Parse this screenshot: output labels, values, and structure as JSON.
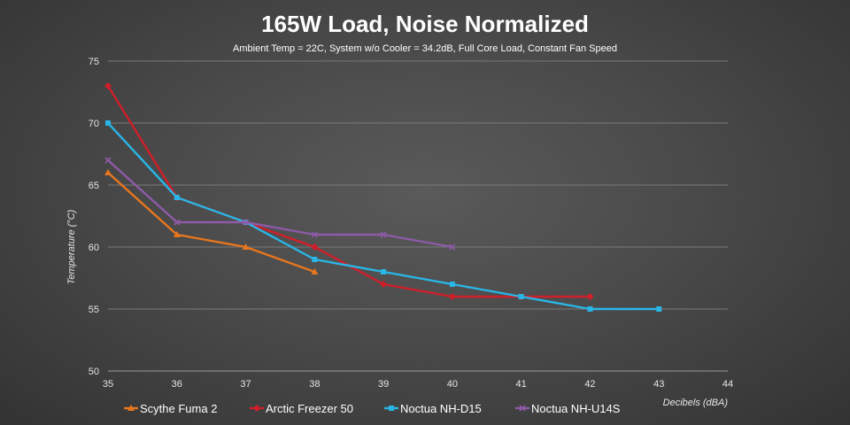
{
  "chart_data": {
    "type": "line",
    "title": "165W Load, Noise Normalized",
    "subtitle": "Ambient Temp = 22C, System w/o Cooler = 34.2dB, Full Core Load, Constant Fan Speed",
    "xlabel": "Decibels (dBA)",
    "ylabel": "Temperature (°C)",
    "xlim": [
      35,
      44
    ],
    "ylim": [
      50,
      75
    ],
    "x_ticks": [
      "35",
      "36",
      "37",
      "38",
      "39",
      "40",
      "41",
      "42",
      "43",
      "44"
    ],
    "y_ticks": [
      "50",
      "55",
      "60",
      "65",
      "70",
      "75"
    ],
    "grid": true,
    "legend_position": "bottom",
    "series": [
      {
        "name": "Scythe Fuma 2",
        "color": "#e8761e",
        "marker": "triangle",
        "x": [
          35,
          36,
          37,
          38
        ],
        "y": [
          66,
          61,
          60,
          58
        ]
      },
      {
        "name": "Arctic Freezer 50",
        "color": "#d01f2a",
        "marker": "diamond",
        "x": [
          35,
          36,
          37,
          38,
          39,
          40,
          41,
          42
        ],
        "y": [
          73,
          64,
          62,
          60,
          57,
          56,
          56,
          56
        ]
      },
      {
        "name": "Noctua NH-D15",
        "color": "#29b6e6",
        "marker": "square",
        "x": [
          35,
          36,
          37,
          38,
          39,
          40,
          41,
          42,
          43
        ],
        "y": [
          70,
          64,
          62,
          59,
          58,
          57,
          56,
          55,
          55
        ]
      },
      {
        "name": "Noctua NH-U14S",
        "color": "#8e5aa8",
        "marker": "x",
        "x": [
          35,
          36,
          37,
          38,
          39,
          40
        ],
        "y": [
          67,
          62,
          62,
          61,
          61,
          60
        ]
      }
    ]
  }
}
